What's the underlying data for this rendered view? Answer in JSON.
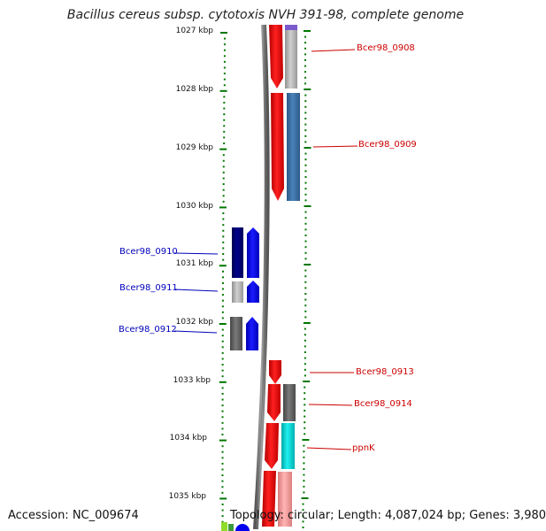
{
  "title": "Bacillus cereus subsp. cytotoxis NVH 391-98, complete genome",
  "accession": "Accession: NC_009674",
  "topology": "Topology: circular; Length: 4,087,024 bp; Genes: 3,980",
  "kbp_ticks": [
    "1027 kbp",
    "1028 kbp",
    "1029 kbp",
    "1030 kbp",
    "1031 kbp",
    "1032 kbp",
    "1033 kbp",
    "1034 kbp",
    "1035 kbp"
  ],
  "gene_labels": [
    "Bcer98_0908",
    "Bcer98_0909",
    "Bcer98_0910",
    "Bcer98_0911",
    "Bcer98_0912",
    "Bcer98_0913",
    "Bcer98_0914",
    "ppnK"
  ],
  "colors": {
    "red_gene": "#ff0000",
    "blue_gene": "#0000ff",
    "navy_gene": "#00006e",
    "steelblue_gene": "#3a6fa0",
    "gray_gene": "#bbbbbb",
    "darkgray_gene": "#666666",
    "cyan_gene": "#00d8d8",
    "pink_gene": "#f49a9a",
    "tick_green": "#007700",
    "backbone": "#888888"
  }
}
